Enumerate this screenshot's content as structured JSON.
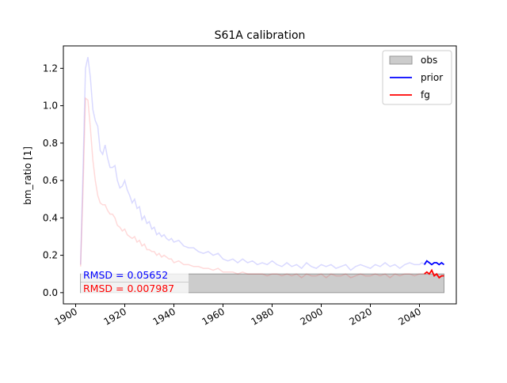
{
  "chart_data": {
    "type": "line",
    "title": "S61A calibration",
    "xlabel": "",
    "ylabel": "bm_ratio [1]",
    "xlim": [
      1895,
      2055
    ],
    "ylim": [
      -0.06,
      1.32
    ],
    "xticks": [
      "1900",
      "1920",
      "1940",
      "1960",
      "1980",
      "2000",
      "2020",
      "2040"
    ],
    "yticks": [
      "0.0",
      "0.2",
      "0.4",
      "0.6",
      "0.8",
      "1.0",
      "1.2"
    ],
    "grid": false,
    "legend": "top-right",
    "obs": {
      "name": "obs",
      "x_start": 1902,
      "x_end": 2050,
      "y_low": 0.0,
      "y_high": 0.1,
      "color": "#cccccc"
    },
    "series": [
      {
        "name": "prior",
        "color": "#0000ff",
        "x": [
          1902,
          1903,
          1904,
          1905,
          1906,
          1907,
          1908,
          1909,
          1910,
          1911,
          1912,
          1913,
          1914,
          1915,
          1916,
          1917,
          1918,
          1919,
          1920,
          1921,
          1922,
          1923,
          1924,
          1925,
          1926,
          1927,
          1928,
          1929,
          1930,
          1931,
          1932,
          1933,
          1934,
          1935,
          1936,
          1937,
          1938,
          1939,
          1940,
          1942,
          1944,
          1946,
          1948,
          1950,
          1952,
          1954,
          1956,
          1958,
          1960,
          1962,
          1964,
          1966,
          1968,
          1970,
          1972,
          1974,
          1976,
          1978,
          1980,
          1982,
          1984,
          1986,
          1988,
          1990,
          1992,
          1994,
          1996,
          1998,
          2000,
          2002,
          2004,
          2006,
          2008,
          2010,
          2012,
          2014,
          2016,
          2018,
          2020,
          2022,
          2024,
          2026,
          2028,
          2030,
          2032,
          2034,
          2036,
          2038,
          2040,
          2041,
          2042,
          2043,
          2044,
          2045,
          2046,
          2047,
          2048,
          2049,
          2050
        ],
        "y": [
          0.15,
          0.65,
          1.2,
          1.26,
          1.15,
          0.98,
          0.92,
          0.89,
          0.76,
          0.74,
          0.79,
          0.72,
          0.67,
          0.67,
          0.68,
          0.6,
          0.56,
          0.57,
          0.6,
          0.55,
          0.52,
          0.48,
          0.5,
          0.45,
          0.46,
          0.39,
          0.41,
          0.37,
          0.38,
          0.34,
          0.35,
          0.31,
          0.32,
          0.3,
          0.31,
          0.29,
          0.28,
          0.29,
          0.27,
          0.28,
          0.25,
          0.24,
          0.24,
          0.22,
          0.21,
          0.22,
          0.2,
          0.21,
          0.18,
          0.17,
          0.18,
          0.16,
          0.18,
          0.16,
          0.17,
          0.15,
          0.16,
          0.15,
          0.17,
          0.15,
          0.14,
          0.16,
          0.14,
          0.15,
          0.13,
          0.16,
          0.14,
          0.13,
          0.15,
          0.14,
          0.15,
          0.13,
          0.14,
          0.15,
          0.12,
          0.14,
          0.15,
          0.14,
          0.13,
          0.15,
          0.14,
          0.16,
          0.14,
          0.15,
          0.13,
          0.15,
          0.16,
          0.15,
          0.15,
          0.16,
          0.15,
          0.17,
          0.16,
          0.15,
          0.16,
          0.16,
          0.15,
          0.16,
          0.15
        ],
        "highlight_from": 2042,
        "rmsd": "RMSD = 0.05652"
      },
      {
        "name": "fg",
        "color": "#ff0000",
        "x": [
          1902,
          1903,
          1904,
          1905,
          1906,
          1907,
          1908,
          1909,
          1910,
          1911,
          1912,
          1913,
          1914,
          1915,
          1916,
          1917,
          1918,
          1919,
          1920,
          1921,
          1922,
          1923,
          1924,
          1925,
          1926,
          1927,
          1928,
          1929,
          1930,
          1931,
          1932,
          1933,
          1934,
          1935,
          1936,
          1937,
          1938,
          1939,
          1940,
          1942,
          1944,
          1946,
          1948,
          1950,
          1952,
          1954,
          1956,
          1958,
          1960,
          1962,
          1964,
          1966,
          1968,
          1970,
          1972,
          1974,
          1976,
          1978,
          1980,
          1982,
          1984,
          1986,
          1988,
          1990,
          1992,
          1994,
          1996,
          1998,
          2000,
          2002,
          2004,
          2006,
          2008,
          2010,
          2012,
          2014,
          2016,
          2018,
          2020,
          2022,
          2024,
          2026,
          2028,
          2030,
          2032,
          2034,
          2036,
          2038,
          2040,
          2041,
          2042,
          2043,
          2044,
          2045,
          2046,
          2047,
          2048,
          2049,
          2050
        ],
        "y": [
          0.14,
          0.55,
          1.04,
          1.03,
          0.88,
          0.71,
          0.6,
          0.52,
          0.48,
          0.47,
          0.47,
          0.44,
          0.42,
          0.42,
          0.4,
          0.36,
          0.35,
          0.33,
          0.34,
          0.31,
          0.3,
          0.29,
          0.3,
          0.27,
          0.28,
          0.25,
          0.26,
          0.23,
          0.23,
          0.22,
          0.22,
          0.2,
          0.21,
          0.19,
          0.2,
          0.19,
          0.18,
          0.18,
          0.16,
          0.17,
          0.15,
          0.15,
          0.14,
          0.14,
          0.13,
          0.13,
          0.12,
          0.13,
          0.11,
          0.11,
          0.11,
          0.1,
          0.11,
          0.1,
          0.1,
          0.1,
          0.1,
          0.09,
          0.1,
          0.1,
          0.09,
          0.1,
          0.09,
          0.1,
          0.08,
          0.1,
          0.09,
          0.09,
          0.1,
          0.08,
          0.1,
          0.09,
          0.09,
          0.1,
          0.08,
          0.09,
          0.1,
          0.09,
          0.09,
          0.1,
          0.09,
          0.1,
          0.08,
          0.1,
          0.09,
          0.1,
          0.1,
          0.09,
          0.1,
          0.1,
          0.1,
          0.11,
          0.1,
          0.12,
          0.09,
          0.1,
          0.08,
          0.09,
          0.09
        ],
        "highlight_from": 2042,
        "rmsd": "RMSD = 0.007987"
      }
    ]
  }
}
